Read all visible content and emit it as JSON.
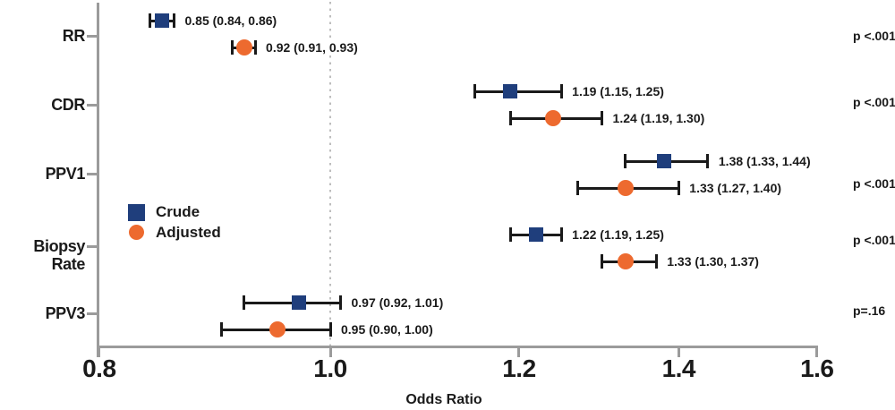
{
  "chart_data": {
    "type": "scatter",
    "variant": "forest-plot",
    "xlabel": "Odds Ratio",
    "x_scale": "log",
    "xlim": [
      0.8,
      1.6
    ],
    "x_ticks": [
      {
        "value": 0.8,
        "label": "0.8"
      },
      {
        "value": 1.0,
        "label": "1.0"
      },
      {
        "value": 1.2,
        "label": "1.2"
      },
      {
        "value": 1.4,
        "label": "1.4"
      },
      {
        "value": 1.6,
        "label": "1.6"
      }
    ],
    "reference_line": {
      "value": 1.0,
      "style": "dotted"
    },
    "grid": false,
    "legend_position": "center-left",
    "categories": [
      "RR",
      "CDR",
      "PPV1",
      "Biopsy Rate",
      "PPV3"
    ],
    "series": [
      {
        "name": "Crude",
        "marker": "square",
        "color": "#1F3E7C",
        "values": [
          {
            "category": "RR",
            "or": 0.85,
            "ci": [
              0.84,
              0.86
            ],
            "label": "0.85 (0.84, 0.86)"
          },
          {
            "category": "CDR",
            "or": 1.19,
            "ci": [
              1.15,
              1.25
            ],
            "label": "1.19 (1.15, 1.25)"
          },
          {
            "category": "PPV1",
            "or": 1.38,
            "ci": [
              1.33,
              1.44
            ],
            "label": "1.38 (1.33, 1.44)"
          },
          {
            "category": "Biopsy Rate",
            "or": 1.22,
            "ci": [
              1.19,
              1.25
            ],
            "label": "1.22 (1.19, 1.25)"
          },
          {
            "category": "PPV3",
            "or": 0.97,
            "ci": [
              0.92,
              1.01
            ],
            "label": "0.97 (0.92, 1.01)"
          }
        ]
      },
      {
        "name": "Adjusted",
        "marker": "circle",
        "color": "#ED6A2F",
        "values": [
          {
            "category": "RR",
            "or": 0.92,
            "ci": [
              0.91,
              0.93
            ],
            "label": "0.92 (0.91, 0.93)"
          },
          {
            "category": "CDR",
            "or": 1.24,
            "ci": [
              1.19,
              1.3
            ],
            "label": "1.24 (1.19, 1.30)"
          },
          {
            "category": "PPV1",
            "or": 1.33,
            "ci": [
              1.27,
              1.4
            ],
            "label": "1.33 (1.27, 1.40)"
          },
          {
            "category": "Biopsy Rate",
            "or": 1.33,
            "ci": [
              1.3,
              1.37
            ],
            "label": "1.33 (1.30, 1.37)"
          },
          {
            "category": "PPV3",
            "or": 0.95,
            "ci": [
              0.9,
              1.0
            ],
            "label": "0.95 (0.90, 1.00)"
          }
        ]
      }
    ],
    "p_values": [
      {
        "category": "RR",
        "label": "p <.001"
      },
      {
        "category": "CDR",
        "label": "p <.001"
      },
      {
        "category": "PPV1",
        "label": "p <.001"
      },
      {
        "category": "Biopsy Rate",
        "label": "p <.001"
      },
      {
        "category": "PPV3",
        "label": "p=.16"
      }
    ]
  },
  "colors": {
    "crude": "#1F3E7C",
    "adjusted": "#ED6A2F",
    "axis": "#9B9B9B",
    "reference_line": "#BDBDBD",
    "error_bar": "#1A1A1A",
    "text": "#1A1A1A",
    "background": "#FFFFFF"
  }
}
